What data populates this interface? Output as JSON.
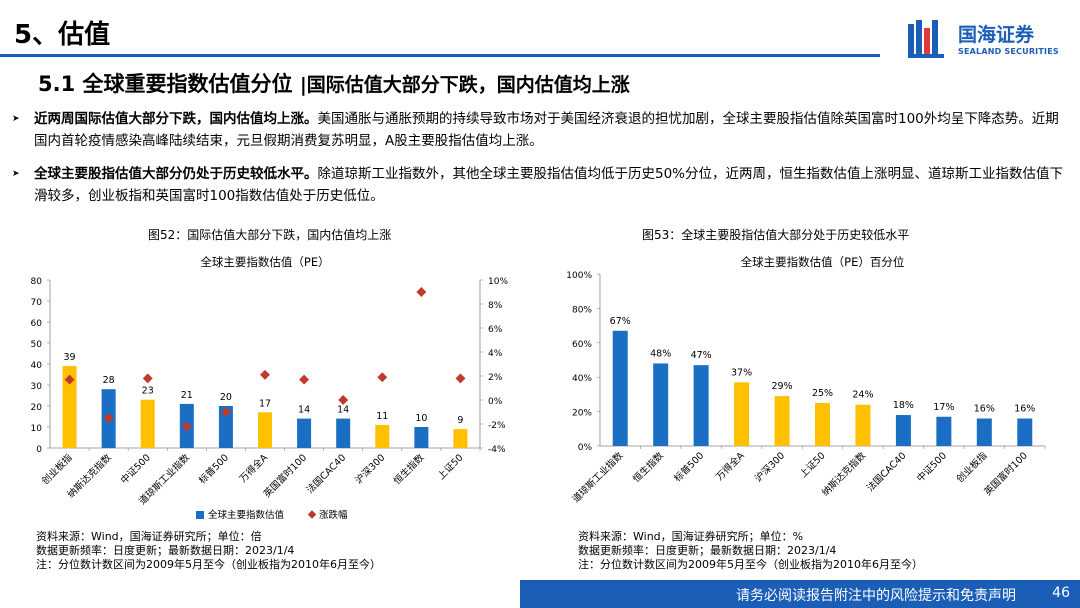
{
  "header": {
    "section_title": "5、估值",
    "logo_cn": "国海证券",
    "logo_en": "SEALAND SECURITIES",
    "subtitle_main": "5.1 全球重要指数估值分位",
    "subtitle_sep": "|",
    "subtitle_sub": "国际估值大部分下跌，国内估值均上涨"
  },
  "bullets": [
    {
      "bold": "近两周国际估值大部分下跌，国内估值均上涨。",
      "text": "美国通胀与通胀预期的持续导致市场对于美国经济衰退的担忧加剧，全球主要股指估值除英国富时100外均呈下降态势。近期国内首轮疫情感染高峰陆续结束，元旦假期消费复苏明显，A股主要股指估值均上涨。"
    },
    {
      "bold": "全球主要股指估值大部分仍处于历史较低水平。",
      "text": "除道琼斯工业指数外，其他全球主要股指估值均低于历史50%分位，近两周，恒生指数估值上涨明显、道琼斯工业指数估值下滑较多，创业板指和英国富时100指数估值处于历史低位。"
    }
  ],
  "figures": {
    "left_caption": "图52：国际估值大部分下跌，国内估值均上涨",
    "right_caption": "图53：全球主要股指估值大部分处于历史较低水平"
  },
  "notes": {
    "left": [
      "资料来源：Wind，国海证券研究所；单位：倍",
      "数据更新频率：日度更新；最新数据日期：2023/1/4",
      "注：分位数计数区间为2009年5月至今（创业板指为2010年6月至今）"
    ],
    "right": [
      "资料来源：Wind，国海证券研究所；单位：%",
      "数据更新频率：日度更新；最新数据日期：2023/1/4",
      "注：分位数计数区间为2009年5月至今（创业板指为2010年6月至今）"
    ]
  },
  "footer": {
    "disclaimer": "请务必阅读报告附注中的风险提示和免责声明",
    "page": "46"
  },
  "colors": {
    "blue": "#1a6fc4",
    "yellow": "#ffc000",
    "red": "#c0392b",
    "brand": "#1a5eb8"
  },
  "chart_data": [
    {
      "type": "bar",
      "title": "全球主要指数估值（PE）",
      "categories": [
        "创业板指",
        "纳斯达克指数",
        "中证500",
        "道琼斯工业指数",
        "标普500",
        "万得全A",
        "英国富时100",
        "法国CAC40",
        "沪深300",
        "恒生指数",
        "上证50"
      ],
      "series": [
        {
          "name": "全球主要指数估值",
          "type": "bar",
          "values": [
            39,
            28,
            23,
            21,
            20,
            17,
            14,
            14,
            11,
            10,
            9
          ],
          "colors": [
            "yellow",
            "blue",
            "yellow",
            "blue",
            "blue",
            "yellow",
            "blue",
            "blue",
            "yellow",
            "blue",
            "yellow"
          ]
        },
        {
          "name": "涨跌幅",
          "type": "scatter",
          "axis": "right",
          "values": [
            1.7,
            -1.5,
            1.8,
            -2.2,
            -1.0,
            2.1,
            1.7,
            0.0,
            1.9,
            9.0,
            1.8
          ]
        }
      ],
      "ylim": [
        0,
        80
      ],
      "yticks": [
        0,
        10,
        20,
        30,
        40,
        50,
        60,
        70,
        80
      ],
      "y2lim": [
        -4,
        10
      ],
      "y2ticks": [
        "-4%",
        "-2%",
        "0%",
        "2%",
        "4%",
        "6%",
        "8%",
        "10%"
      ],
      "legend": [
        "全球主要指数估值",
        "涨跌幅"
      ]
    },
    {
      "type": "bar",
      "title": "全球主要指数估值（PE）百分位",
      "categories": [
        "道琼斯工业指数",
        "恒生指数",
        "标普500",
        "万得全A",
        "沪深300",
        "上证50",
        "纳斯达克指数",
        "法国CAC40",
        "中证500",
        "创业板指",
        "英国富时100"
      ],
      "values": [
        67,
        48,
        47,
        37,
        29,
        25,
        24,
        18,
        17,
        16,
        16
      ],
      "labels": [
        "67%",
        "48%",
        "47%",
        "37%",
        "29%",
        "25%",
        "24%",
        "18%",
        "17%",
        "16%",
        "16%"
      ],
      "colors": [
        "blue",
        "blue",
        "blue",
        "yellow",
        "yellow",
        "yellow",
        "yellow",
        "blue",
        "blue",
        "blue",
        "blue"
      ],
      "ylim": [
        0,
        100
      ],
      "yticks": [
        "0%",
        "20%",
        "40%",
        "60%",
        "80%",
        "100%"
      ]
    }
  ]
}
